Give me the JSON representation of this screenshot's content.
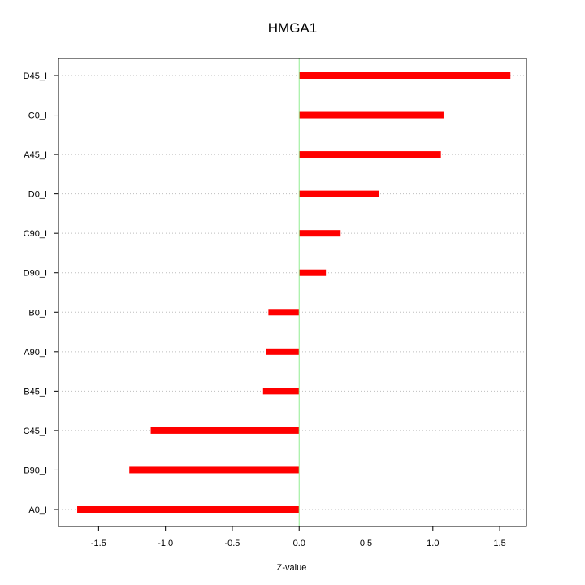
{
  "chart_data": {
    "type": "bar",
    "orientation": "horizontal",
    "title": "HMGA1",
    "xlabel": "Z-value",
    "ylabel": "",
    "categories": [
      "D45_I",
      "C0_I",
      "A45_I",
      "D0_I",
      "C90_I",
      "D90_I",
      "B0_I",
      "A90_I",
      "B45_I",
      "C45_I",
      "B90_I",
      "A0_I"
    ],
    "values": [
      1.58,
      1.08,
      1.06,
      0.6,
      0.31,
      0.2,
      -0.23,
      -0.25,
      -0.27,
      -1.11,
      -1.27,
      -1.66
    ],
    "xlim": [
      -1.8,
      1.7
    ],
    "xticks": [
      -1.5,
      -1.0,
      -0.5,
      0.0,
      0.5,
      1.0,
      1.5
    ],
    "xtick_labels": [
      "-1.5",
      "-1.0",
      "-0.5",
      "0.0",
      "0.5",
      "1.0",
      "1.5"
    ],
    "zero_line": 0,
    "grid": "horizontal dotted",
    "colors": {
      "bar": "#ff0000",
      "zero_line": "#90ee90",
      "grid": "#bebebe",
      "frame": "#000000"
    }
  }
}
